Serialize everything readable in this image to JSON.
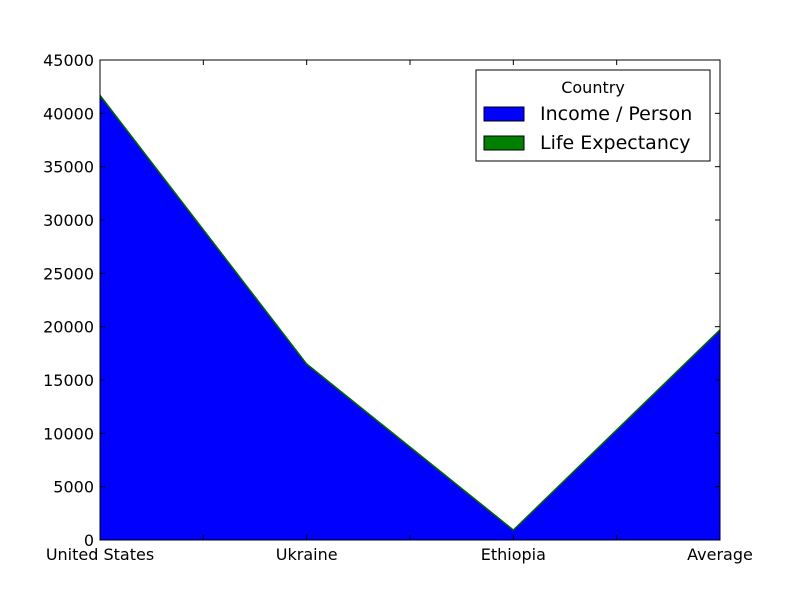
{
  "chart_data": {
    "type": "area",
    "stacked": true,
    "categories": [
      "United States",
      "Ukraine",
      "Ethiopia",
      "Average"
    ],
    "series": [
      {
        "name": "Income / Person",
        "values": [
          41641,
          16458,
          903,
          19667
        ],
        "color": "#0000ff"
      },
      {
        "name": "Life Expectancy",
        "values": [
          79,
          70,
          60,
          70
        ],
        "color": "#008000"
      }
    ],
    "ylim": [
      0,
      45000
    ],
    "yticks": [
      0,
      5000,
      10000,
      15000,
      20000,
      25000,
      30000,
      35000,
      40000,
      45000
    ],
    "legend": {
      "title": "Country",
      "position": "top-right"
    },
    "grid": false
  }
}
